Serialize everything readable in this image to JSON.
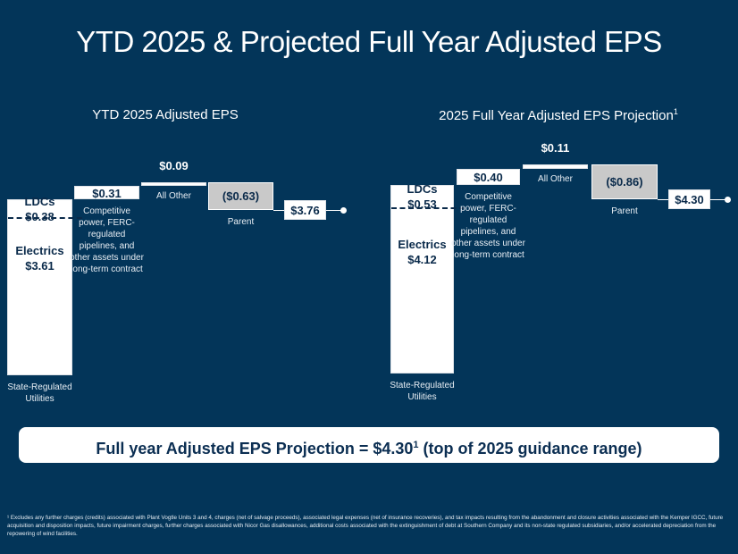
{
  "title": "YTD 2025 & Projected Full Year Adjusted EPS",
  "callout": {
    "text": "Full year Adjusted EPS Projection = $4.30",
    "sup": "1",
    "suffix": " (top of 2025 guidance range)"
  },
  "footnote": "¹ Excludes any further charges (credits) associated with Plant Vogtle Units 3 and 4, charges (net of salvage proceeds), associated legal expenses (net of insurance recoveries), and tax impacts resulting from the abandonment and closure activities associated with the Kemper IGCC, future acquisition and disposition impacts, future impairment charges, further charges associated with Nicor Gas disallowances, additional costs associated with the extinguishment of debt at Southern Company and its non-state regulated subsidiaries, and/or accelerated depreciation from the repowering of wind facilities.",
  "colors": {
    "background": "#033559",
    "bar": "#ffffff",
    "negative_bar": "#c9c9c9"
  },
  "chart_data": [
    {
      "type": "bar",
      "subtype": "waterfall",
      "title": "YTD 2025 Adjusted EPS",
      "title_sup": "",
      "stack": {
        "category": "State-Regulated Utilities",
        "segments": [
          {
            "name": "Electrics",
            "value": 3.61,
            "label": "$3.61"
          },
          {
            "name": "LDCs",
            "value": 0.38,
            "label": "$0.38"
          }
        ]
      },
      "steps": [
        {
          "category": "Competitive power, FERC-regulated pipelines, and other assets under long-term contract",
          "value": 0.31,
          "label": "$0.31",
          "label_pos": "inside"
        },
        {
          "category": "All Other",
          "value": 0.09,
          "label": "$0.09",
          "label_pos": "above"
        },
        {
          "category": "Parent",
          "value": -0.63,
          "label": "($0.63)",
          "label_pos": "inside"
        }
      ],
      "total": {
        "value": 3.76,
        "label": "$3.76"
      }
    },
    {
      "type": "bar",
      "subtype": "waterfall",
      "title": "2025 Full Year Adjusted EPS Projection",
      "title_sup": "1",
      "stack": {
        "category": "State-Regulated Utilities",
        "segments": [
          {
            "name": "Electrics",
            "value": 4.12,
            "label": "$4.12"
          },
          {
            "name": "LDCs",
            "value": 0.53,
            "label": "$0.53"
          }
        ]
      },
      "steps": [
        {
          "category": "Competitive power, FERC-regulated pipelines, and other assets under long-term contract",
          "value": 0.4,
          "label": "$0.40",
          "label_pos": "inside"
        },
        {
          "category": "All Other",
          "value": 0.11,
          "label": "$0.11",
          "label_pos": "above"
        },
        {
          "category": "Parent",
          "value": -0.86,
          "label": "($0.86)",
          "label_pos": "inside"
        }
      ],
      "total": {
        "value": 4.3,
        "label": "$4.30"
      }
    }
  ]
}
